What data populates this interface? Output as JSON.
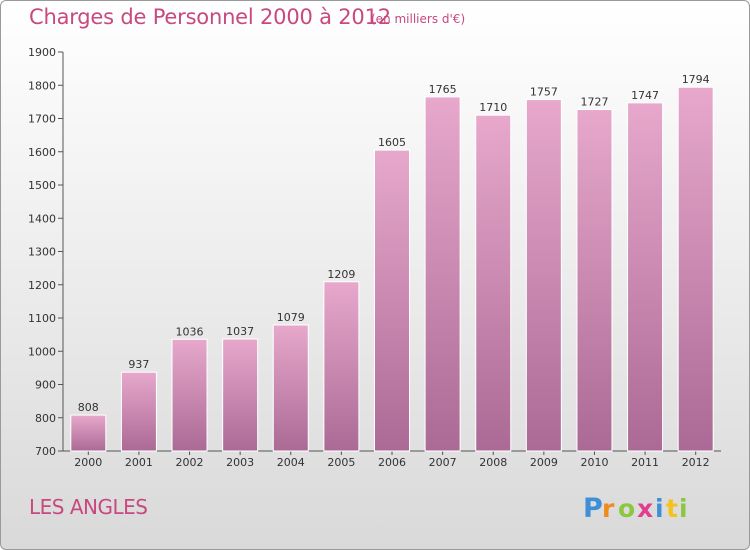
{
  "header": {
    "title": "Charges de Personnel 2000 à 2012",
    "subtitle": "(en milliers d'€)"
  },
  "footer": {
    "place": "LES ANGLES",
    "logo_text": "Proxiti"
  },
  "colors": {
    "accent": "#c8487f",
    "bar_top": "#e7a8cc",
    "bar_bottom": "#ab6a95"
  },
  "chart_data": {
    "type": "bar",
    "categories": [
      "2000",
      "2001",
      "2002",
      "2003",
      "2004",
      "2005",
      "2006",
      "2007",
      "2008",
      "2009",
      "2010",
      "2011",
      "2012"
    ],
    "values": [
      808,
      937,
      1036,
      1037,
      1079,
      1209,
      1605,
      1765,
      1710,
      1757,
      1727,
      1747,
      1794
    ],
    "title": "Charges de Personnel 2000 à 2012",
    "xlabel": "",
    "ylabel": "",
    "ylim": [
      700,
      1900
    ],
    "yticks": [
      700,
      800,
      900,
      1000,
      1100,
      1200,
      1300,
      1400,
      1500,
      1600,
      1700,
      1800,
      1900
    ],
    "grid": false,
    "legend": "none"
  }
}
